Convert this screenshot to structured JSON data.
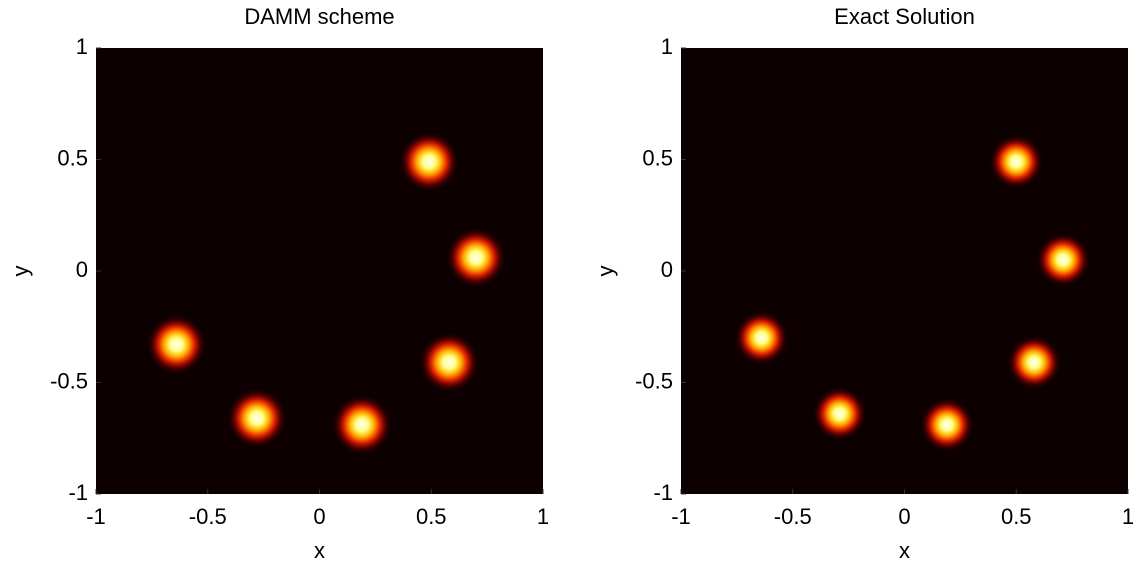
{
  "chart_data": [
    {
      "type": "scatter",
      "title": "DAMM scheme",
      "x_label": "x",
      "y_label": "y",
      "x": [
        0.49,
        0.7,
        0.58,
        0.19,
        -0.28,
        -0.64
      ],
      "y": [
        0.49,
        0.06,
        -0.41,
        -0.69,
        -0.66,
        -0.33
      ],
      "xlim": [
        -1,
        1
      ],
      "ylim": [
        -1,
        1
      ],
      "xticks": [
        -1,
        -0.5,
        0,
        0.5,
        1
      ],
      "yticks": [
        -1,
        -0.5,
        0,
        0.5,
        1
      ]
    },
    {
      "type": "scatter",
      "title": "Exact Solution",
      "x_label": "x",
      "y_label": "y",
      "x": [
        0.5,
        0.71,
        0.58,
        0.19,
        -0.29,
        -0.64
      ],
      "y": [
        0.49,
        0.05,
        -0.41,
        -0.69,
        -0.64,
        -0.3
      ],
      "xlim": [
        -1,
        1
      ],
      "ylim": [
        -1,
        1
      ],
      "xticks": [
        -1,
        -0.5,
        0,
        0.5,
        1
      ],
      "yticks": [
        -1,
        -0.5,
        0,
        0.5,
        1
      ]
    }
  ]
}
